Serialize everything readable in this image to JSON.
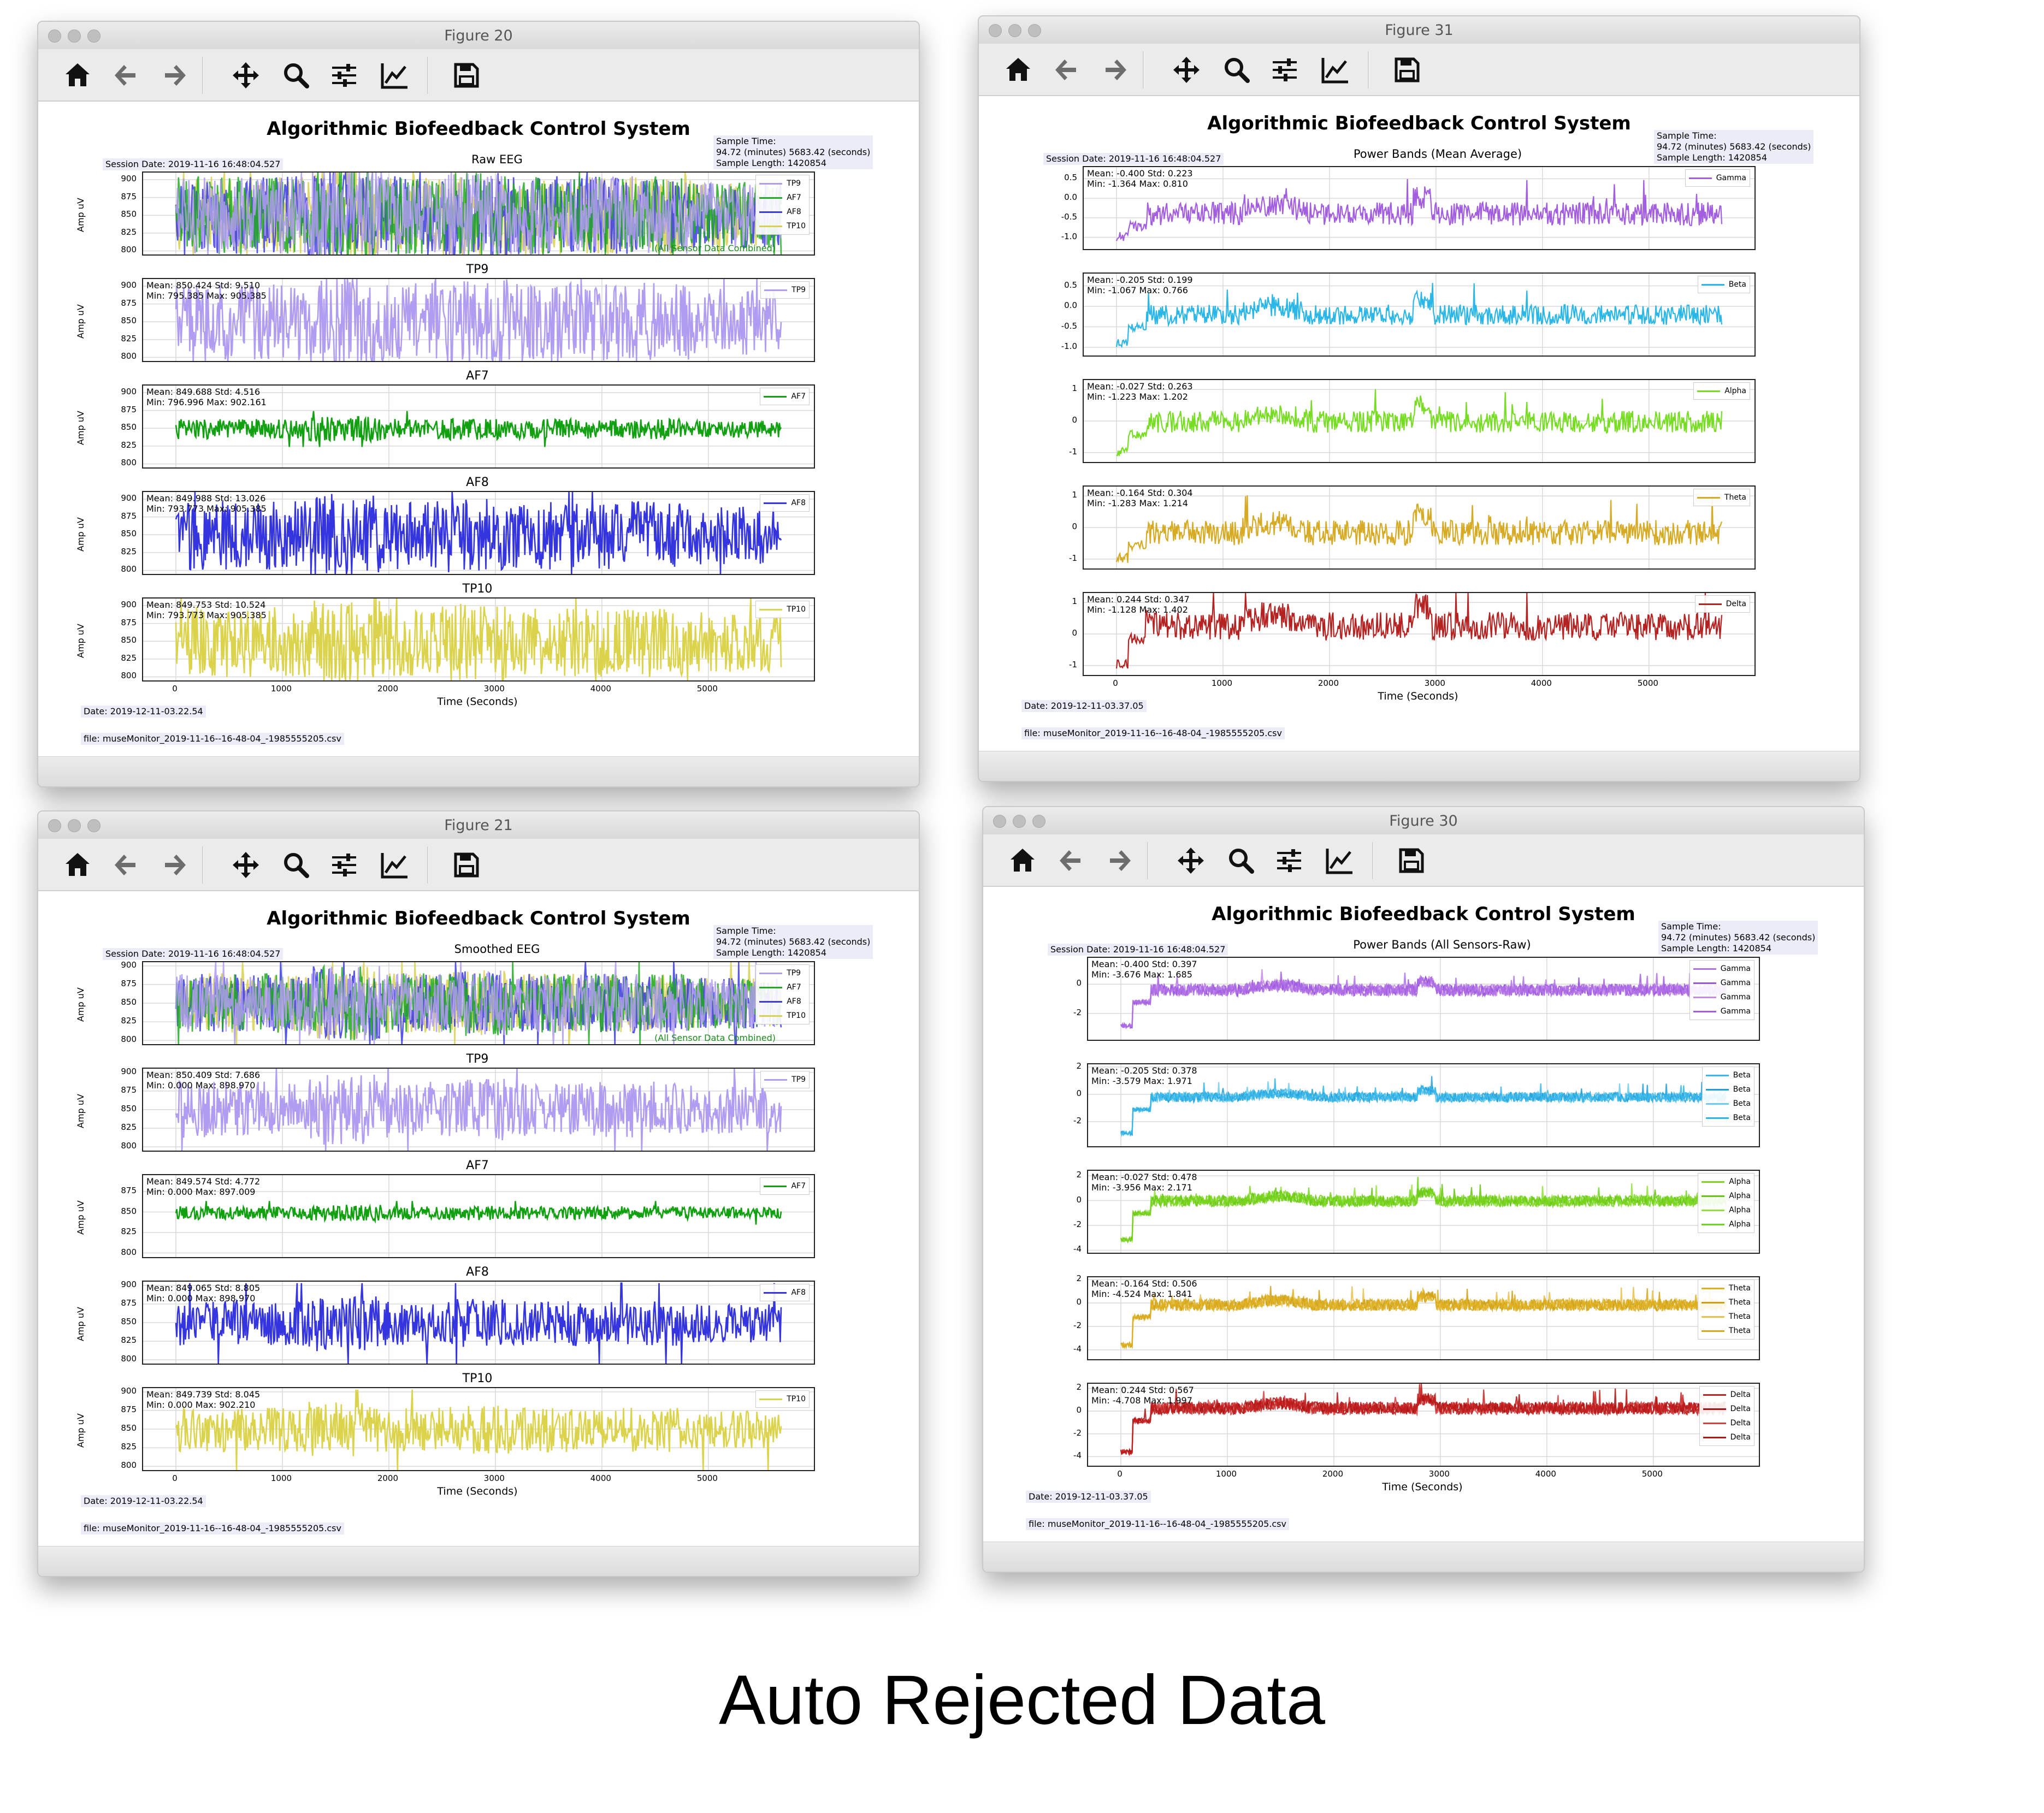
{
  "caption": "Auto Rejected Data",
  "windows": [
    {
      "title": "Figure 20",
      "figure_title": "Algorithmic Biofeedback Control System",
      "subtitle": "Raw EEG",
      "session_date": "Session Date: 2019-11-16 16:48:04.527",
      "sample_time": [
        "Sample Time:",
        "94.72 (minutes) 5683.42 (seconds)",
        "Sample Length: 1420854"
      ],
      "date": "Date: 2019-12-11-03.22.54",
      "file": "file: museMonitor_2019-11-16--16-48-04_-1985555205.csv",
      "ylabel": "Amp uV",
      "xlabel": "Time (Seconds)",
      "combined_note": "(All Sensor Data Combined)"
    },
    {
      "title": "Figure 31",
      "figure_title": "Algorithmic Biofeedback Control System",
      "subtitle": "Power Bands (Mean Average)",
      "session_date": "Session Date: 2019-11-16 16:48:04.527",
      "sample_time": [
        "Sample Time:",
        "94.72 (minutes) 5683.42 (seconds)",
        "Sample Length: 1420854"
      ],
      "date": "Date: 2019-12-11-03.37.05",
      "file": "file: museMonitor_2019-11-16--16-48-04_-1985555205.csv",
      "xlabel": "Time (Seconds)"
    },
    {
      "title": "Figure 21",
      "figure_title": "Algorithmic Biofeedback Control System",
      "subtitle": "Smoothed EEG",
      "session_date": "Session Date: 2019-11-16 16:48:04.527",
      "sample_time": [
        "Sample Time:",
        "94.72 (minutes) 5683.42 (seconds)",
        "Sample Length: 1420854"
      ],
      "date": "Date: 2019-12-11-03.22.54",
      "file": "file: museMonitor_2019-11-16--16-48-04_-1985555205.csv",
      "ylabel": "Amp uV",
      "xlabel": "Time (Seconds)",
      "combined_note": "(All Sensor Data Combined)"
    },
    {
      "title": "Figure 30",
      "figure_title": "Algorithmic Biofeedback Control System",
      "subtitle": "Power Bands (All Sensors-Raw)",
      "session_date": "Session Date: 2019-11-16 16:48:04.527",
      "sample_time": [
        "Sample Time:",
        "94.72 (minutes) 5683.42 (seconds)",
        "Sample Length: 1420854"
      ],
      "date": "Date: 2019-12-11-03.37.05",
      "file": "file: museMonitor_2019-11-16--16-48-04_-1985555205.csv",
      "xlabel": "Time (Seconds)"
    }
  ],
  "toolbar_icons": [
    "home-icon",
    "back-arrow-icon",
    "forward-arrow-icon",
    "pan-move-icon",
    "zoom-magnifier-icon",
    "configure-subplots-icon",
    "edit-axis-icon",
    "save-icon"
  ],
  "chart_data": [
    {
      "type": "line",
      "figure": "Figure 20",
      "title": "Raw EEG",
      "x_range": [
        0,
        5683
      ],
      "x_ticks": [
        "0",
        "1000",
        "2000",
        "3000",
        "4000",
        "5000"
      ],
      "panels": [
        {
          "label": "",
          "legend": [
            "TP9",
            "AF7",
            "AF8",
            "TP10"
          ],
          "colors": [
            "#b09cf0",
            "#22aa22",
            "#3a3ae0",
            "#d8d050"
          ],
          "yticks": [
            "900",
            "875",
            "850",
            "825",
            "800"
          ],
          "ylim": [
            795,
            910
          ],
          "mean": 850,
          "amp": 55,
          "stats": []
        },
        {
          "label": "TP9",
          "legend": [
            "TP9"
          ],
          "colors": [
            "#b09cf0"
          ],
          "yticks": [
            "900",
            "875",
            "850",
            "825",
            "800"
          ],
          "ylim": [
            795,
            910
          ],
          "mean": 850,
          "amp": 55,
          "stats": [
            "Mean: 850.424 Std: 9.510",
            "Min: 795.385 Max: 905.385"
          ]
        },
        {
          "label": "AF7",
          "legend": [
            "AF7"
          ],
          "colors": [
            "#10a010"
          ],
          "yticks": [
            "900",
            "875",
            "850",
            "825",
            "800"
          ],
          "ylim": [
            795,
            910
          ],
          "mean": 849,
          "amp": 14,
          "stats": [
            "Mean: 849.688 Std: 4.516",
            "Min: 796.996 Max: 902.161"
          ]
        },
        {
          "label": "AF8",
          "legend": [
            "AF8"
          ],
          "colors": [
            "#3535e0"
          ],
          "yticks": [
            "900",
            "875",
            "850",
            "825",
            "800"
          ],
          "ylim": [
            795,
            910
          ],
          "mean": 849,
          "amp": 48,
          "stats": [
            "Mean: 849.988 Std: 13.026",
            "Min: 793.773 Max: 905.385"
          ]
        },
        {
          "label": "TP10",
          "legend": [
            "TP10"
          ],
          "colors": [
            "#dcd34c"
          ],
          "yticks": [
            "900",
            "875",
            "850",
            "825",
            "800"
          ],
          "ylim": [
            795,
            910
          ],
          "mean": 849,
          "amp": 50,
          "stats": [
            "Mean: 849.753 Std: 10.524",
            "Min: 793.773 Max: 905.385"
          ]
        }
      ]
    },
    {
      "type": "line",
      "figure": "Figure 31",
      "title": "Power Bands (Mean Average)",
      "x_range": [
        0,
        5683
      ],
      "x_ticks": [
        "0",
        "1000",
        "2000",
        "3000",
        "4000",
        "5000"
      ],
      "panels": [
        {
          "label": "",
          "legend": [
            "Gamma"
          ],
          "colors": [
            "#a35ee0"
          ],
          "yticks": [
            "0.5",
            "0.0",
            "-0.5",
            "-1.0"
          ],
          "ylim": [
            -1.3,
            0.8
          ],
          "mean": -0.4,
          "amp": 0.3,
          "stats": [
            "Mean: -0.400 Std: 0.223",
            "Min: -1.364 Max: 0.810"
          ]
        },
        {
          "label": "",
          "legend": [
            "Beta"
          ],
          "colors": [
            "#2ab6e6"
          ],
          "yticks": [
            "0.5",
            "0.0",
            "-0.5",
            "-1.0"
          ],
          "ylim": [
            -1.2,
            0.8
          ],
          "mean": -0.205,
          "amp": 0.25,
          "stats": [
            "Mean: -0.205 Std: 0.199",
            "Min: -1.067 Max: 0.766"
          ]
        },
        {
          "label": "",
          "legend": [
            "Alpha"
          ],
          "colors": [
            "#77dd22"
          ],
          "yticks": [
            "1",
            "0",
            "-1"
          ],
          "ylim": [
            -1.3,
            1.3
          ],
          "mean": -0.027,
          "amp": 0.35,
          "stats": [
            "Mean: -0.027 Std: 0.263",
            "Min: -1.223 Max: 1.202"
          ]
        },
        {
          "label": "",
          "legend": [
            "Theta"
          ],
          "colors": [
            "#d6aa22"
          ],
          "yticks": [
            "1",
            "0",
            "-1"
          ],
          "ylim": [
            -1.3,
            1.3
          ],
          "mean": -0.164,
          "amp": 0.4,
          "stats": [
            "Mean: -0.164 Std: 0.304",
            "Min: -1.283 Max: 1.214"
          ]
        },
        {
          "label": "",
          "legend": [
            "Delta"
          ],
          "colors": [
            "#b52222"
          ],
          "yticks": [
            "1",
            "0",
            "-1"
          ],
          "ylim": [
            -1.3,
            1.3
          ],
          "mean": 0.244,
          "amp": 0.45,
          "stats": [
            "Mean: 0.244 Std: 0.347",
            "Min: -1.128 Max: 1.402"
          ]
        }
      ]
    },
    {
      "type": "line",
      "figure": "Figure 21",
      "title": "Smoothed EEG",
      "x_range": [
        0,
        5683
      ],
      "x_ticks": [
        "0",
        "1000",
        "2000",
        "3000",
        "4000",
        "5000"
      ],
      "panels": [
        {
          "label": "",
          "legend": [
            "TP9",
            "AF7",
            "AF8",
            "TP10"
          ],
          "colors": [
            "#b09cf0",
            "#22aa22",
            "#3a3ae0",
            "#d8d050"
          ],
          "yticks": [
            "900",
            "875",
            "850",
            "825",
            "800"
          ],
          "ylim": [
            795,
            905
          ],
          "mean": 850,
          "amp": 40,
          "stats": []
        },
        {
          "label": "TP9",
          "legend": [
            "TP9"
          ],
          "colors": [
            "#b09cf0"
          ],
          "yticks": [
            "900",
            "875",
            "850",
            "825",
            "800"
          ],
          "ylim": [
            795,
            905
          ],
          "mean": 850,
          "amp": 38,
          "stats": [
            "Mean: 850.409 Std: 7.686",
            "Min: 0.000 Max: 898.970"
          ]
        },
        {
          "label": "AF7",
          "legend": [
            "AF7"
          ],
          "colors": [
            "#10a010"
          ],
          "yticks": [
            "875",
            "850",
            "825",
            "800"
          ],
          "ylim": [
            795,
            895
          ],
          "mean": 849,
          "amp": 8,
          "stats": [
            "Mean: 849.574 Std: 4.772",
            "Min: 0.000 Max: 897.009"
          ]
        },
        {
          "label": "AF8",
          "legend": [
            "AF8"
          ],
          "colors": [
            "#3535e0"
          ],
          "yticks": [
            "900",
            "875",
            "850",
            "825",
            "800"
          ],
          "ylim": [
            795,
            905
          ],
          "mean": 849,
          "amp": 30,
          "stats": [
            "Mean: 849.065 Std: 8.805",
            "Min: 0.000 Max: 898.970"
          ]
        },
        {
          "label": "TP10",
          "legend": [
            "TP10"
          ],
          "colors": [
            "#dcd34c"
          ],
          "yticks": [
            "900",
            "875",
            "850",
            "825",
            "800"
          ],
          "ylim": [
            795,
            905
          ],
          "mean": 849,
          "amp": 30,
          "stats": [
            "Mean: 849.739 Std: 8.045",
            "Min: 0.000 Max: 902.210"
          ]
        }
      ]
    },
    {
      "type": "line",
      "figure": "Figure 30",
      "title": "Power Bands (All Sensors-Raw)",
      "x_range": [
        0,
        5683
      ],
      "x_ticks": [
        "0",
        "1000",
        "2000",
        "3000",
        "4000",
        "5000"
      ],
      "panels": [
        {
          "label": "",
          "legend": [
            "Gamma",
            "Gamma",
            "Gamma",
            "Gamma"
          ],
          "colors": [
            "#b070e6",
            "#9b55dd",
            "#c38ae9",
            "#a35ee0"
          ],
          "yticks": [
            "0",
            "-2"
          ],
          "ylim": [
            -3.8,
            1.8
          ],
          "mean": -0.4,
          "amp": 0.4,
          "stats": [
            "Mean: -0.400 Std: 0.397",
            "Min: -3.676 Max: 1.685"
          ]
        },
        {
          "label": "",
          "legend": [
            "Beta",
            "Beta",
            "Beta",
            "Beta"
          ],
          "colors": [
            "#3ab9ea",
            "#1f9fd8",
            "#6ccaf0",
            "#2ab6e6"
          ],
          "yticks": [
            "2",
            "0",
            "-2"
          ],
          "ylim": [
            -3.8,
            2.2
          ],
          "mean": -0.205,
          "amp": 0.35,
          "stats": [
            "Mean: -0.205 Std: 0.378",
            "Min: -3.579 Max: 1.971"
          ]
        },
        {
          "label": "",
          "legend": [
            "Alpha",
            "Alpha",
            "Alpha",
            "Alpha"
          ],
          "colors": [
            "#7ad31e",
            "#66c512",
            "#8fe23a",
            "#6ad81c"
          ],
          "yticks": [
            "2",
            "0",
            "-2",
            "-4"
          ],
          "ylim": [
            -4.2,
            2.4
          ],
          "mean": -0.027,
          "amp": 0.45,
          "stats": [
            "Mean: -0.027 Std: 0.478",
            "Min: -3.956 Max: 2.171"
          ]
        },
        {
          "label": "",
          "legend": [
            "Theta",
            "Theta",
            "Theta",
            "Theta"
          ],
          "colors": [
            "#e0b020",
            "#cda014",
            "#e8c04a",
            "#d4a81c"
          ],
          "yticks": [
            "2",
            "0",
            "-2",
            "-4"
          ],
          "ylim": [
            -4.8,
            2.2
          ],
          "mean": -0.164,
          "amp": 0.5,
          "stats": [
            "Mean: -0.164 Std: 0.506",
            "Min: -4.524 Max: 1.841"
          ]
        },
        {
          "label": "",
          "legend": [
            "Delta",
            "Delta",
            "Delta",
            "Delta"
          ],
          "colors": [
            "#c42020",
            "#a80f0f",
            "#d44040",
            "#b81414"
          ],
          "yticks": [
            "2",
            "0",
            "-2",
            "-4"
          ],
          "ylim": [
            -4.8,
            2.4
          ],
          "mean": 0.244,
          "amp": 0.55,
          "stats": [
            "Mean: 0.244 Std: 0.567",
            "Min: -4.708 Max: 1.997"
          ]
        }
      ]
    }
  ]
}
